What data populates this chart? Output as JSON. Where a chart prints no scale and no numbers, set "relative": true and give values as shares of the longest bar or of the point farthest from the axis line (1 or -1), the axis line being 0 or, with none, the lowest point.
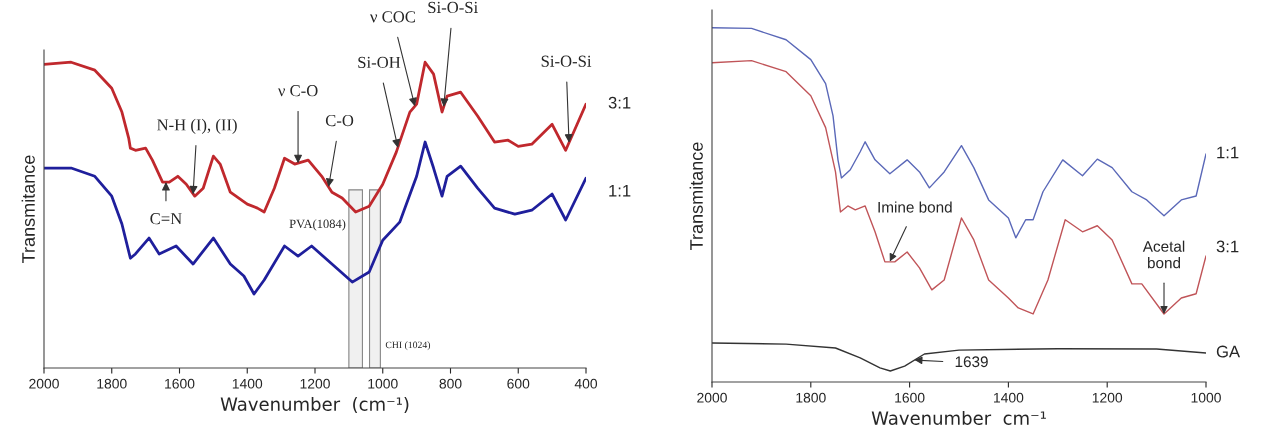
{
  "chart_data": [
    {
      "type": "line",
      "xlabel": "Wavenumber  (cm⁻¹)",
      "ylabel": "Transmitance",
      "relative": true,
      "tick_labels": "x",
      "xlim": [
        2000,
        400
      ],
      "xticks": [
        2000,
        1800,
        1600,
        1400,
        1200,
        1000,
        800,
        600,
        400
      ],
      "x": [
        2000,
        1920,
        1850,
        1800,
        1770,
        1750,
        1745,
        1730,
        1700,
        1680,
        1650,
        1630,
        1605,
        1580,
        1555,
        1530,
        1500,
        1480,
        1450,
        1400,
        1370,
        1350,
        1320,
        1290,
        1260,
        1220,
        1180,
        1150,
        1120,
        1080,
        1040,
        1000,
        960,
        920,
        900,
        875,
        850,
        825,
        810,
        770,
        720,
        670,
        630,
        600,
        560,
        500,
        460,
        400
      ],
      "series": [
        {
          "name": "3:1",
          "color": "#c0282d",
          "values": [
            0.993,
            1.0,
            0.974,
            0.915,
            0.837,
            0.752,
            0.719,
            0.712,
            0.719,
            0.68,
            0.608,
            0.608,
            0.627,
            0.601,
            0.562,
            0.588,
            0.693,
            0.667,
            0.575,
            0.536,
            0.523,
            0.51,
            0.588,
            0.686,
            0.667,
            0.68,
            0.627,
            0.575,
            0.556,
            0.51,
            0.529,
            0.601,
            0.706,
            0.837,
            0.863,
            1.0,
            0.961,
            0.837,
            0.889,
            0.902,
            0.824,
            0.739,
            0.745,
            0.725,
            0.732,
            0.797,
            0.712,
            0.863
          ]
        },
        {
          "name": "1:1",
          "color": "#1f1f9c",
          "x": [
            2000,
            1920,
            1850,
            1800,
            1770,
            1745,
            1730,
            1690,
            1660,
            1610,
            1560,
            1500,
            1450,
            1410,
            1380,
            1350,
            1290,
            1250,
            1210,
            1150,
            1090,
            1040,
            1000,
            950,
            900,
            875,
            850,
            825,
            810,
            770,
            720,
            670,
            610,
            560,
            500,
            460,
            400
          ],
          "values": [
            0.654,
            0.654,
            0.627,
            0.562,
            0.471,
            0.359,
            0.373,
            0.425,
            0.373,
            0.399,
            0.34,
            0.425,
            0.34,
            0.301,
            0.242,
            0.288,
            0.399,
            0.366,
            0.399,
            0.34,
            0.281,
            0.314,
            0.418,
            0.477,
            0.627,
            0.739,
            0.654,
            0.562,
            0.627,
            0.66,
            0.588,
            0.523,
            0.503,
            0.516,
            0.569,
            0.484,
            0.621
          ]
        }
      ],
      "bands": [
        {
          "axis": "x",
          "from": 1100,
          "to": 1060,
          "label": "PVA(1084)",
          "color": "#888888"
        },
        {
          "axis": "x",
          "from": 1039,
          "to": 1007,
          "label": "CHI (1024)",
          "color": "#888888"
        }
      ],
      "annotations": [
        {
          "text": "N-H (I), (II)",
          "x": 1560,
          "y": 0.568
        },
        {
          "text": "ν C-O",
          "x": 1250,
          "y": 0.67
        },
        {
          "text": "C-O",
          "x": 1160,
          "y": 0.592
        },
        {
          "text": "Si-OH",
          "x": 955,
          "y": 0.72
        },
        {
          "text": "ν COC",
          "x": 905,
          "y": 0.856
        },
        {
          "text": "Si-O-Si",
          "x": 820,
          "y": 0.854
        },
        {
          "text": "Si-O-Si",
          "x": 450,
          "y": 0.737
        },
        {
          "text": "C=N",
          "x": 1640,
          "y": 0.608
        }
      ]
    },
    {
      "type": "line",
      "xlabel": "Wavenumber  cm⁻¹",
      "ylabel": "Transmitance",
      "relative": true,
      "tick_labels": "x",
      "xlim": [
        2000,
        1000
      ],
      "xticks": [
        2000,
        1800,
        1600,
        1400,
        1200,
        1000
      ],
      "series": [
        {
          "name": "1:1",
          "color": "#5a68b8",
          "x": [
            2000,
            1920,
            1850,
            1800,
            1770,
            1755,
            1745,
            1738,
            1720,
            1700,
            1690,
            1670,
            1640,
            1605,
            1580,
            1560,
            1530,
            1495,
            1470,
            1440,
            1400,
            1385,
            1365,
            1350,
            1330,
            1290,
            1250,
            1220,
            1190,
            1150,
            1120,
            1085,
            1050,
            1020,
            1000
          ],
          "values": [
            1.0,
            0.998,
            0.966,
            0.91,
            0.842,
            0.751,
            0.627,
            0.576,
            0.599,
            0.65,
            0.678,
            0.627,
            0.588,
            0.627,
            0.593,
            0.548,
            0.593,
            0.667,
            0.605,
            0.514,
            0.463,
            0.407,
            0.458,
            0.458,
            0.537,
            0.627,
            0.582,
            0.629,
            0.605,
            0.537,
            0.514,
            0.469,
            0.514,
            0.525,
            0.644
          ]
        },
        {
          "name": "3:1",
          "color": "#c05458",
          "x": [
            2000,
            1920,
            1850,
            1800,
            1770,
            1750,
            1740,
            1725,
            1710,
            1690,
            1670,
            1650,
            1630,
            1605,
            1580,
            1555,
            1530,
            1495,
            1470,
            1440,
            1400,
            1380,
            1350,
            1320,
            1285,
            1250,
            1220,
            1190,
            1150,
            1130,
            1085,
            1050,
            1020,
            1000
          ],
          "values": [
            0.901,
            0.907,
            0.876,
            0.808,
            0.718,
            0.593,
            0.48,
            0.497,
            0.486,
            0.497,
            0.424,
            0.339,
            0.339,
            0.367,
            0.322,
            0.26,
            0.288,
            0.463,
            0.401,
            0.288,
            0.237,
            0.209,
            0.192,
            0.288,
            0.458,
            0.424,
            0.441,
            0.401,
            0.277,
            0.277,
            0.192,
            0.237,
            0.249,
            0.356
          ]
        },
        {
          "name": "GA",
          "color": "#333333",
          "x": [
            2000,
            1850,
            1750,
            1700,
            1660,
            1639,
            1610,
            1570,
            1500,
            1300,
            1100,
            1000
          ],
          "values": [
            0.11,
            0.107,
            0.096,
            0.068,
            0.04,
            0.031,
            0.045,
            0.079,
            0.09,
            0.094,
            0.093,
            0.082
          ]
        }
      ],
      "annotations": [
        {
          "text": "Imine bond",
          "x": 1640,
          "y": 0.34
        },
        {
          "text": "Acetal bond",
          "x": 1085,
          "y": 0.192
        },
        {
          "text": "1639",
          "x": 1590,
          "y": 0.062
        }
      ]
    }
  ]
}
